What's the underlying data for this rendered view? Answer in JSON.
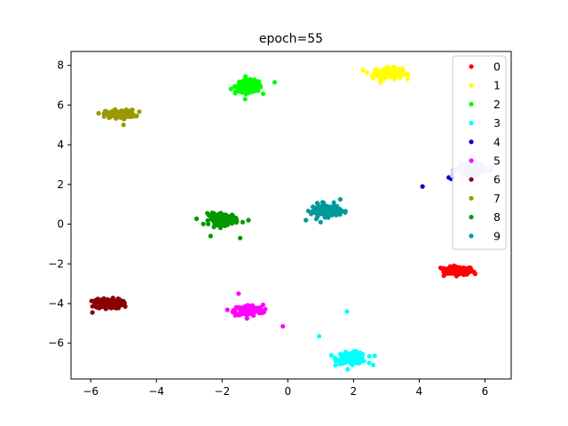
{
  "chart_data": {
    "type": "scatter",
    "title": "epoch=55",
    "xlabel": "",
    "ylabel": "",
    "xlim": [
      -6.6,
      6.8
    ],
    "ylim": [
      -7.8,
      8.7
    ],
    "xticks": [
      -6,
      -4,
      -2,
      0,
      2,
      4,
      6
    ],
    "yticks": [
      -6,
      -4,
      -2,
      0,
      2,
      4,
      6,
      8
    ],
    "grid": false,
    "legend_position": "top-right",
    "series": [
      {
        "name": "0",
        "color": "#ff0000",
        "center": [
          5.2,
          -2.35
        ],
        "spread": [
          0.22,
          0.1
        ],
        "count": 140,
        "outliers": [
          [
            4.75,
            -2.6
          ],
          [
            4.65,
            -2.2
          ],
          [
            5.7,
            -2.5
          ]
        ]
      },
      {
        "name": "1",
        "color": "#ffff00",
        "center": [
          3.05,
          7.6
        ],
        "spread": [
          0.22,
          0.14
        ],
        "count": 140,
        "outliers": [
          [
            3.6,
            7.55
          ],
          [
            2.6,
            7.35
          ]
        ]
      },
      {
        "name": "2",
        "color": "#00ff00",
        "center": [
          -1.2,
          6.95
        ],
        "spread": [
          0.2,
          0.15
        ],
        "count": 140,
        "outliers": [
          [
            -0.4,
            7.15
          ],
          [
            -1.6,
            6.6
          ],
          [
            -1.3,
            6.3
          ]
        ]
      },
      {
        "name": "3",
        "color": "#00ffff",
        "center": [
          1.95,
          -6.75
        ],
        "spread": [
          0.22,
          0.14
        ],
        "count": 140,
        "outliers": [
          [
            1.8,
            -4.4
          ],
          [
            0.95,
            -5.65
          ],
          [
            2.6,
            -7.1
          ]
        ]
      },
      {
        "name": "4",
        "color": "#0000cc",
        "center": [
          4.95,
          2.35
        ],
        "spread": [
          0.04,
          0.03
        ],
        "count": 2,
        "outliers": [
          [
            4.1,
            1.9
          ],
          [
            4.9,
            2.35
          ]
        ]
      },
      {
        "name": "5",
        "color": "#ff00ff",
        "center": [
          -1.2,
          -4.35
        ],
        "spread": [
          0.22,
          0.14
        ],
        "count": 140,
        "outliers": [
          [
            -1.5,
            -3.5
          ],
          [
            -0.15,
            -5.15
          ],
          [
            -1.6,
            -4.6
          ]
        ]
      },
      {
        "name": "6",
        "color": "#8b0000",
        "center": [
          -5.45,
          -4.0
        ],
        "spread": [
          0.2,
          0.12
        ],
        "count": 140,
        "outliers": [
          [
            -5.95,
            -4.45
          ],
          [
            -4.95,
            -4.15
          ],
          [
            -5.6,
            -3.75
          ]
        ]
      },
      {
        "name": "7",
        "color": "#999900",
        "center": [
          -5.1,
          5.55
        ],
        "spread": [
          0.22,
          0.1
        ],
        "count": 140,
        "outliers": [
          [
            -4.75,
            5.75
          ],
          [
            -5.0,
            5.0
          ]
        ]
      },
      {
        "name": "8",
        "color": "#009900",
        "center": [
          -1.95,
          0.25
        ],
        "spread": [
          0.22,
          0.14
        ],
        "count": 140,
        "outliers": [
          [
            -2.35,
            -0.6
          ],
          [
            -1.45,
            -0.7
          ],
          [
            -1.2,
            0.2
          ],
          [
            -2.45,
            0.55
          ]
        ]
      },
      {
        "name": "9",
        "color": "#009999",
        "center": [
          1.15,
          0.7
        ],
        "spread": [
          0.22,
          0.15
        ],
        "count": 140,
        "outliers": [
          [
            0.55,
            0.2
          ],
          [
            1.6,
            1.25
          ],
          [
            1.0,
            0.1
          ]
        ]
      },
      {
        "name": "",
        "color": "#c8c8f5",
        "center": [
          5.55,
          2.75
        ],
        "spread": [
          0.2,
          0.12
        ],
        "count": 130,
        "outliers": [
          [
            6.2,
            2.85
          ],
          [
            5.0,
            2.45
          ]
        ]
      }
    ]
  }
}
